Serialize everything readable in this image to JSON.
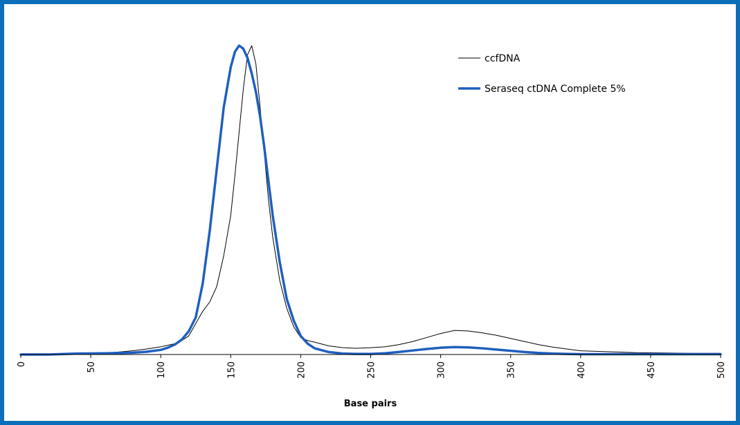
{
  "frame_color": "#0a6fb8",
  "chart_data": {
    "type": "line",
    "title": "",
    "xlabel": "Base pairs",
    "ylabel": "",
    "xlim": [
      0,
      500
    ],
    "ylim": [
      0,
      1
    ],
    "x_ticks": [
      "0",
      "50",
      "100",
      "150",
      "200",
      "250",
      "300",
      "350",
      "400",
      "450",
      "500"
    ],
    "y_ticks_shown": false,
    "grid": false,
    "legend_position": "top-right",
    "series": [
      {
        "name": "ccfDNA",
        "color": "#000000",
        "style": "thin",
        "x": [
          0,
          20,
          40,
          60,
          70,
          80,
          90,
          100,
          105,
          110,
          115,
          120,
          125,
          130,
          135,
          140,
          145,
          150,
          153,
          156,
          159,
          162,
          165,
          168,
          171,
          174,
          177,
          180,
          185,
          190,
          195,
          200,
          205,
          210,
          220,
          230,
          240,
          250,
          260,
          270,
          280,
          290,
          300,
          310,
          320,
          330,
          340,
          350,
          360,
          370,
          380,
          390,
          400,
          420,
          440,
          460,
          480,
          500
        ],
        "y": [
          0.0,
          0.0,
          0.002,
          0.005,
          0.008,
          0.012,
          0.018,
          0.025,
          0.03,
          0.035,
          0.045,
          0.06,
          0.1,
          0.14,
          0.17,
          0.22,
          0.32,
          0.45,
          0.58,
          0.72,
          0.86,
          0.97,
          1.0,
          0.94,
          0.8,
          0.65,
          0.5,
          0.38,
          0.24,
          0.15,
          0.09,
          0.055,
          0.045,
          0.04,
          0.028,
          0.022,
          0.02,
          0.022,
          0.025,
          0.032,
          0.042,
          0.055,
          0.068,
          0.078,
          0.076,
          0.07,
          0.062,
          0.052,
          0.042,
          0.032,
          0.024,
          0.018,
          0.012,
          0.009,
          0.006,
          0.005,
          0.004,
          0.004
        ]
      },
      {
        "name": "Seraseq ctDNA Complete 5%",
        "color": "#1f5fbf",
        "style": "thick",
        "x": [
          0,
          20,
          40,
          60,
          80,
          90,
          100,
          105,
          110,
          115,
          120,
          125,
          130,
          135,
          140,
          145,
          150,
          153,
          156,
          159,
          162,
          165,
          168,
          171,
          174,
          177,
          180,
          185,
          190,
          195,
          200,
          205,
          210,
          220,
          230,
          240,
          250,
          260,
          270,
          280,
          290,
          300,
          310,
          320,
          330,
          340,
          350,
          360,
          370,
          380,
          390,
          400,
          420,
          440,
          460,
          480,
          500
        ],
        "y": [
          0.0,
          0.0,
          0.003,
          0.004,
          0.006,
          0.009,
          0.015,
          0.022,
          0.032,
          0.048,
          0.075,
          0.12,
          0.23,
          0.4,
          0.6,
          0.8,
          0.93,
          0.98,
          1.0,
          0.99,
          0.96,
          0.91,
          0.85,
          0.77,
          0.67,
          0.56,
          0.45,
          0.3,
          0.18,
          0.11,
          0.06,
          0.035,
          0.02,
          0.008,
          0.003,
          0.002,
          0.002,
          0.004,
          0.008,
          0.013,
          0.018,
          0.022,
          0.024,
          0.023,
          0.02,
          0.016,
          0.012,
          0.008,
          0.005,
          0.003,
          0.002,
          0.001,
          0.001,
          0.001,
          0.001,
          0.001,
          0.001
        ]
      }
    ]
  }
}
